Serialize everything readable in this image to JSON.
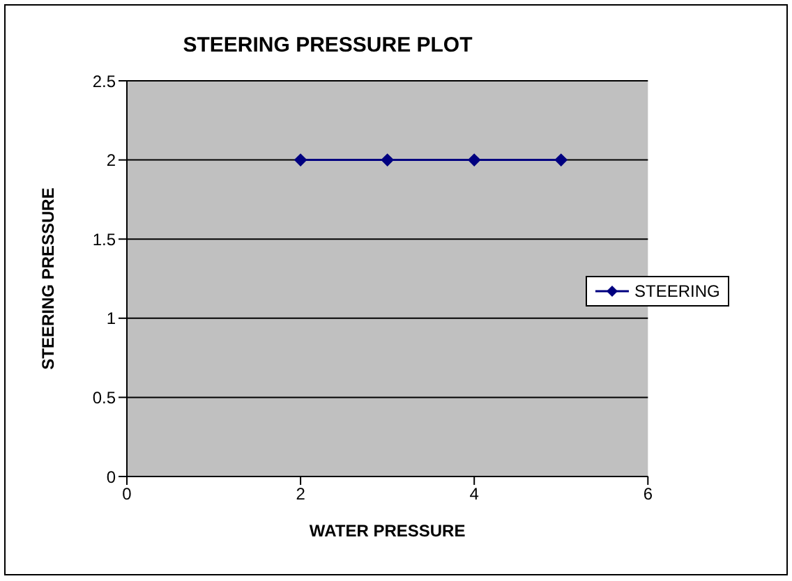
{
  "chart_data": {
    "type": "line",
    "title": "STEERING PRESSURE PLOT",
    "xlabel": "WATER PRESSURE",
    "ylabel": "STEERING PRESSURE",
    "x": [
      2,
      3,
      4,
      5
    ],
    "series": [
      {
        "name": "STEERING",
        "color": "#000080",
        "values": [
          2,
          2,
          2,
          2
        ]
      }
    ],
    "xlim": [
      0,
      6
    ],
    "xticks": [
      0,
      2,
      4,
      6
    ],
    "ylim": [
      0,
      2.5
    ],
    "yticks": [
      0,
      0.5,
      1,
      1.5,
      2,
      2.5
    ],
    "grid": "y",
    "legend": "right",
    "marker": "diamond",
    "line_style": "solid"
  }
}
